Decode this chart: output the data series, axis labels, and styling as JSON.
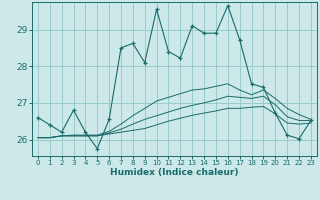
{
  "xlabel": "Humidex (Indice chaleur)",
  "bg_color": "#cce8e8",
  "grid_color": "#99cccc",
  "line_color": "#1a6b6b",
  "xlim": [
    -0.5,
    23.5
  ],
  "ylim": [
    25.55,
    29.75
  ],
  "yticks": [
    26,
    27,
    28,
    29
  ],
  "xticks": [
    0,
    1,
    2,
    3,
    4,
    5,
    6,
    7,
    8,
    9,
    10,
    11,
    12,
    13,
    14,
    15,
    16,
    17,
    18,
    19,
    20,
    21,
    22,
    23
  ],
  "main_series": [
    26.6,
    26.4,
    26.2,
    26.8,
    26.2,
    25.75,
    26.55,
    28.5,
    28.62,
    28.1,
    29.55,
    28.4,
    28.22,
    29.1,
    28.9,
    28.9,
    29.65,
    28.72,
    27.52,
    27.42,
    26.72,
    26.12,
    26.02,
    26.52
  ],
  "line1": [
    26.05,
    26.05,
    26.1,
    26.1,
    26.1,
    26.1,
    26.15,
    26.2,
    26.25,
    26.3,
    26.4,
    26.5,
    26.58,
    26.66,
    26.72,
    26.78,
    26.85,
    26.85,
    26.88,
    26.9,
    26.7,
    26.45,
    26.42,
    26.45
  ],
  "line2": [
    26.05,
    26.05,
    26.1,
    26.1,
    26.1,
    26.1,
    26.18,
    26.28,
    26.42,
    26.55,
    26.65,
    26.75,
    26.85,
    26.93,
    27.0,
    27.08,
    27.18,
    27.15,
    27.12,
    27.18,
    26.95,
    26.62,
    26.52,
    26.52
  ],
  "line3": [
    26.05,
    26.05,
    26.1,
    26.12,
    26.12,
    26.12,
    26.22,
    26.42,
    26.65,
    26.85,
    27.05,
    27.15,
    27.25,
    27.35,
    27.38,
    27.45,
    27.52,
    27.35,
    27.22,
    27.35,
    27.12,
    26.85,
    26.68,
    26.55
  ]
}
